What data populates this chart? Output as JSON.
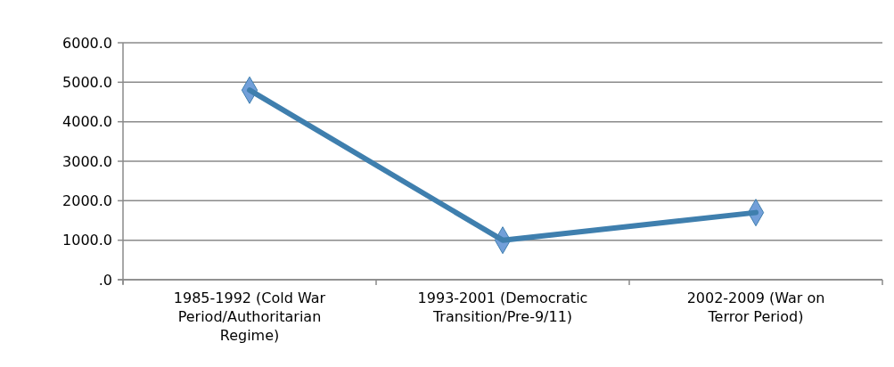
{
  "chart_data": {
    "type": "line",
    "categories": [
      "1985-1992 (Cold War Period/Authoritarian Regime)",
      "1993-2001 (Democratic Transition/Pre-9/11)",
      "2002-2009 (War on Terror Period)"
    ],
    "series": [
      {
        "color": "#3f7fae",
        "values": [
          4800,
          1000,
          1700
        ]
      }
    ],
    "ylim": [
      0,
      6000
    ],
    "yticks": [
      {
        "value": 0,
        "label": ".0"
      },
      {
        "value": 1000,
        "label": "1000.0"
      },
      {
        "value": 2000,
        "label": "2000.0"
      },
      {
        "value": 3000,
        "label": "3000.0"
      },
      {
        "value": 4000,
        "label": "4000.0"
      },
      {
        "value": 5000,
        "label": "5000.0"
      },
      {
        "value": 6000,
        "label": "6000.0"
      }
    ],
    "grid": "y",
    "marker": "diamond",
    "line_style": "solid"
  }
}
